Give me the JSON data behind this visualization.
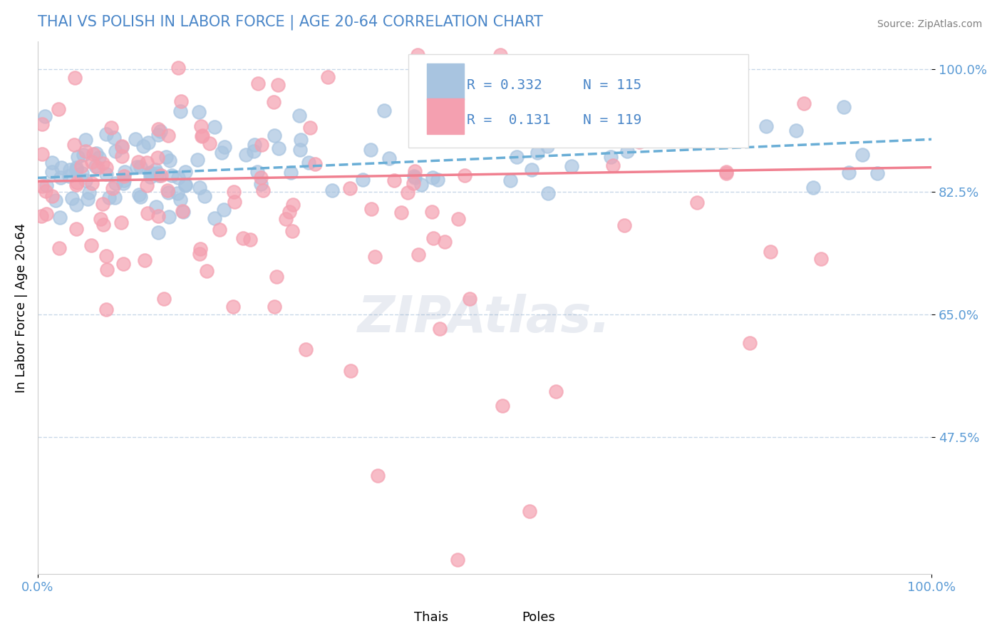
{
  "title": "THAI VS POLISH IN LABOR FORCE | AGE 20-64 CORRELATION CHART",
  "source_text": "Source: ZipAtlas.com",
  "xlabel": "",
  "ylabel": "In Labor Force | Age 20-64",
  "xlim": [
    0.0,
    1.0
  ],
  "ylim": [
    0.28,
    1.04
  ],
  "yticks": [
    0.475,
    0.65,
    0.825,
    1.0
  ],
  "ytick_labels": [
    "47.5%",
    "65.0%",
    "82.5%",
    "100.0%"
  ],
  "xtick_labels": [
    "0.0%",
    "100.0%"
  ],
  "xticks": [
    0.0,
    1.0
  ],
  "thai_color": "#a8c4e0",
  "pole_color": "#f4a0b0",
  "thai_line_color": "#6aaed6",
  "pole_line_color": "#f08090",
  "title_color": "#4a86c8",
  "axis_color": "#5b9bd5",
  "grid_color": "#c8d8e8",
  "legend_r_color": "#4a86c8",
  "legend_n_color": "#4a86c8",
  "thai_R": 0.332,
  "thai_N": 115,
  "pole_R": 0.131,
  "pole_N": 119,
  "watermark": "ZIPAtlas.",
  "thai_scatter_seed": 42,
  "pole_scatter_seed": 7,
  "thai_intercept": 0.845,
  "thai_slope": 0.055,
  "pole_intercept": 0.84,
  "pole_slope": 0.02,
  "background_color": "#ffffff"
}
